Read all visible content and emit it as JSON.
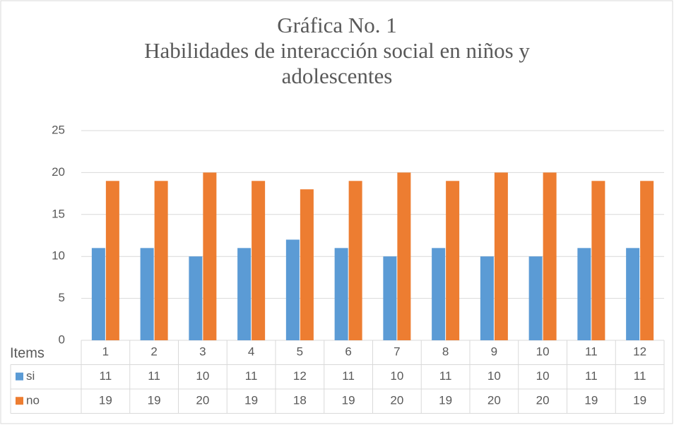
{
  "chart_data": {
    "type": "bar",
    "title": "Gráfica No. 1",
    "subtitle": "Habilidades de interacción social en niños y adolescentes",
    "table_header": "Items",
    "categories": [
      "1",
      "2",
      "3",
      "4",
      "5",
      "6",
      "7",
      "8",
      "9",
      "10",
      "11",
      "12"
    ],
    "series": [
      {
        "name": "si",
        "color": "#5b9bd5",
        "values": [
          11,
          11,
          10,
          11,
          12,
          11,
          10,
          11,
          10,
          10,
          11,
          11
        ]
      },
      {
        "name": "no",
        "color": "#ed7d31",
        "values": [
          19,
          19,
          20,
          19,
          18,
          19,
          20,
          19,
          20,
          20,
          19,
          19
        ]
      }
    ],
    "ylim": [
      0,
      25
    ],
    "yticks": [
      0,
      5,
      10,
      15,
      20,
      25
    ],
    "grid": true
  }
}
